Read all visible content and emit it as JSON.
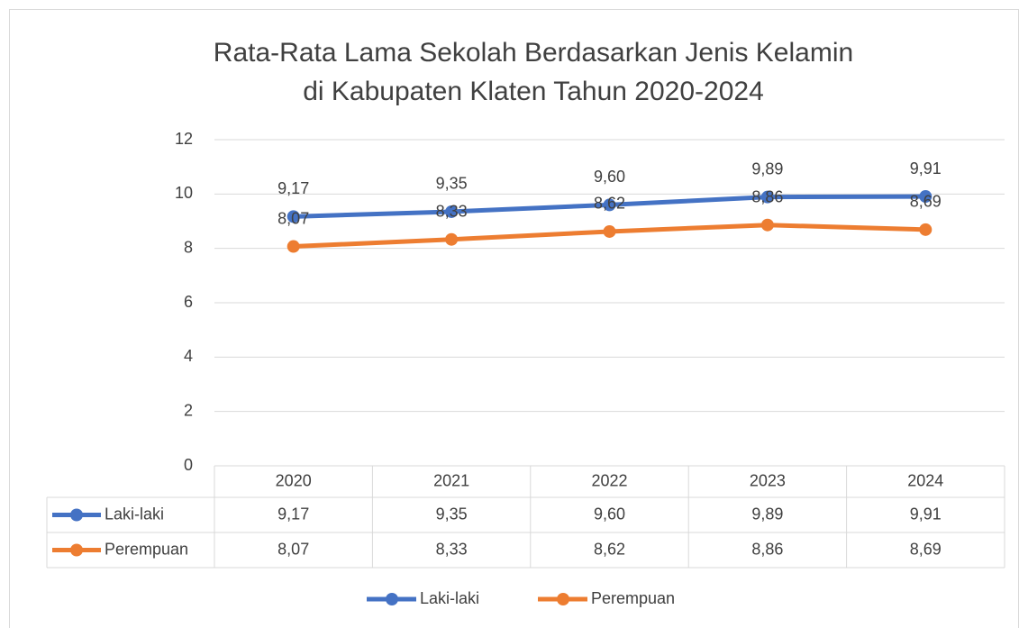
{
  "chart_data": {
    "type": "line",
    "title": [
      "Rata-Rata Lama Sekolah Berdasarkan Jenis Kelamin",
      "di Kabupaten Klaten Tahun 2020-2024"
    ],
    "categories": [
      "2020",
      "2021",
      "2022",
      "2023",
      "2024"
    ],
    "series": [
      {
        "name": "Laki-laki",
        "color": "#4472c4",
        "values": [
          9.17,
          9.35,
          9.6,
          9.89,
          9.91
        ],
        "value_labels": [
          "9,17",
          "9,35",
          "9,60",
          "9,89",
          "9,91"
        ]
      },
      {
        "name": "Perempuan",
        "color": "#ed7d31",
        "values": [
          8.07,
          8.33,
          8.62,
          8.86,
          8.69
        ],
        "value_labels": [
          "8,07",
          "8,33",
          "8,62",
          "8,86",
          "8,69"
        ]
      }
    ],
    "ylim": [
      0,
      12
    ],
    "yticks": [
      0,
      2,
      4,
      6,
      8,
      10,
      12
    ],
    "grid": true,
    "legend": "bottom"
  }
}
